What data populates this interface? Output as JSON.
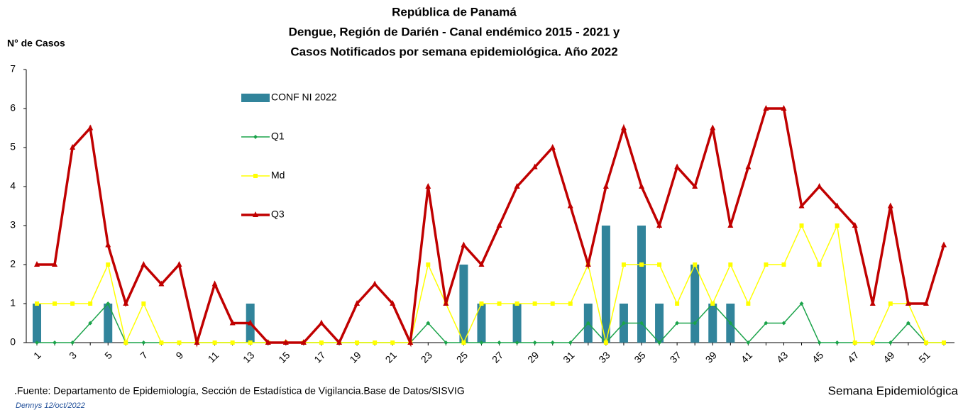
{
  "chart_data": {
    "type": "bar",
    "title": [
      "República de Panamá",
      "Dengue, Región de Darién - Canal endémico 2015 - 2021 y",
      "Casos Notificados por semana epidemiológica. Año 2022"
    ],
    "y_label": "N° de Casos",
    "x_label": "Semana Epidemiológica",
    "source": ".Fuente: Departamento de Epidemiología, Sección de Estadística de Vigilancia.Base de Datos/SISVIG",
    "author": "Dennys 12/oct/2022",
    "categories": [
      1,
      null,
      3,
      null,
      5,
      null,
      7,
      null,
      9,
      null,
      11,
      null,
      13,
      null,
      15,
      null,
      17,
      null,
      19,
      null,
      21,
      null,
      23,
      null,
      25,
      null,
      27,
      null,
      29,
      null,
      31,
      null,
      33,
      null,
      35,
      null,
      37,
      null,
      39,
      null,
      41,
      null,
      43,
      null,
      45,
      null,
      47,
      null,
      49,
      null,
      51,
      null
    ],
    "ylim": [
      0,
      7
    ],
    "yticks": [
      0,
      1,
      2,
      3,
      4,
      5,
      6,
      7
    ],
    "grid": false,
    "series": [
      {
        "name": "CONF NI 2022",
        "type": "bar",
        "color": "#31849b",
        "values": [
          1,
          0,
          0,
          0,
          1,
          0,
          0,
          0,
          0,
          0,
          0,
          0,
          1,
          0,
          0,
          0,
          0,
          0,
          0,
          0,
          0,
          0,
          0,
          0,
          2,
          1,
          0,
          1,
          0,
          0,
          0,
          1,
          3,
          1,
          3,
          1,
          0,
          2,
          1,
          1,
          0,
          0,
          0,
          0,
          0,
          0,
          0,
          0,
          0,
          0,
          0,
          0
        ]
      },
      {
        "name": "Q1",
        "type": "line",
        "marker": "diamond",
        "width": 1.5,
        "color": "#1aa34a",
        "values": [
          0,
          0,
          0,
          0.5,
          1,
          0,
          0,
          0,
          0,
          0,
          0,
          0,
          0,
          0,
          0,
          0,
          0,
          0,
          0,
          0,
          0,
          0,
          0.5,
          0,
          0,
          0,
          0,
          0,
          0,
          0,
          0,
          0.5,
          0,
          0.5,
          0.5,
          0,
          0.5,
          0.5,
          1,
          0.5,
          0,
          0.5,
          0.5,
          1,
          0,
          0,
          0,
          0,
          0,
          0.5,
          0,
          0
        ]
      },
      {
        "name": "Md",
        "type": "line",
        "marker": "square",
        "width": 1.5,
        "color": "#ffff00",
        "values": [
          1,
          1,
          1,
          1,
          2,
          0,
          1,
          0,
          0,
          0,
          0,
          0,
          0,
          0,
          0,
          0,
          0,
          0,
          0,
          0,
          0,
          0,
          2,
          1,
          0,
          1,
          1,
          1,
          1,
          1,
          1,
          2,
          0,
          2,
          2,
          2,
          1,
          2,
          1,
          2,
          1,
          2,
          2,
          3,
          2,
          3,
          0,
          0,
          1,
          1,
          0,
          0
        ]
      },
      {
        "name": "Q3",
        "type": "line",
        "marker": "triangle",
        "width": 3.5,
        "color": "#c00000",
        "values": [
          2,
          2,
          5,
          5.5,
          2.5,
          1,
          2,
          1.5,
          2,
          0,
          1.5,
          0.5,
          0.5,
          0,
          0,
          0,
          0.5,
          0,
          1,
          1.5,
          1,
          0,
          4,
          1,
          2.5,
          2,
          3,
          4,
          4.5,
          5,
          3.5,
          2,
          4,
          5.5,
          4,
          3,
          4.5,
          4,
          5.5,
          3,
          4.5,
          6,
          6,
          3.5,
          4,
          3.5,
          3,
          1,
          3.5,
          1,
          1,
          2.5
        ]
      }
    ]
  }
}
